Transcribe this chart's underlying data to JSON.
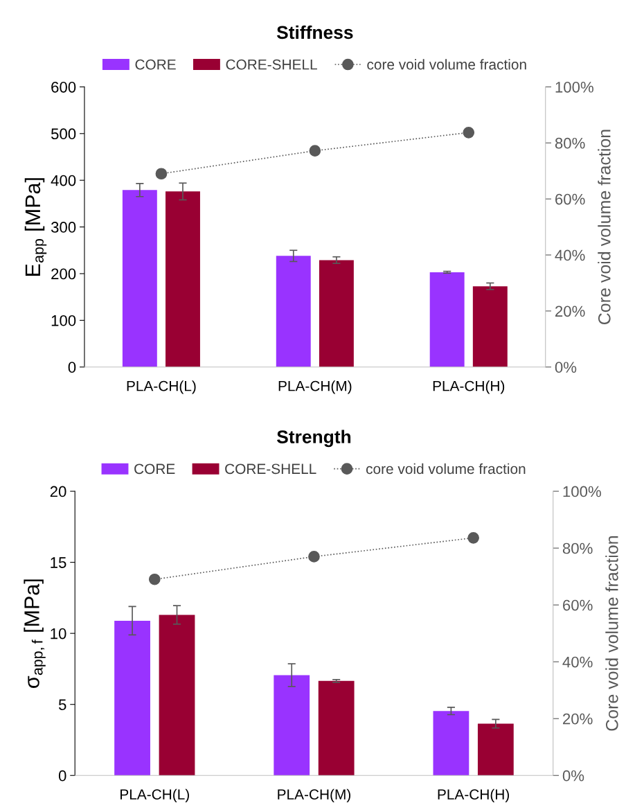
{
  "chart_data": [
    {
      "type": "bar",
      "title": "Stiffness",
      "ylabel": "E$_{app}$ [MPa]",
      "y2label": "Core void volume fraction",
      "categories": [
        "PLA-CH(L)",
        "PLA-CH(M)",
        "PLA-CH(H)"
      ],
      "series": [
        {
          "name": "CORE",
          "color": "#9933ff",
          "values": [
            379,
            238,
            203
          ],
          "errors": [
            14,
            12,
            2
          ]
        },
        {
          "name": "CORE-SHELL",
          "color": "#990033",
          "values": [
            376,
            229,
            173
          ],
          "errors": [
            18,
            7,
            7
          ]
        },
        {
          "name": "core void volume fraction",
          "type": "line",
          "axis": "y2",
          "color": "#595959",
          "marker": "circle",
          "line_style": "dotted",
          "values": [
            69,
            77.2,
            83.7
          ]
        }
      ],
      "ylim": [
        0,
        600
      ],
      "yticks": [
        0,
        100,
        200,
        300,
        400,
        500,
        600
      ],
      "y2lim": [
        0,
        100
      ],
      "y2ticks": [
        {
          "value": 0,
          "label": "0%"
        },
        {
          "value": 20,
          "label": "20%"
        },
        {
          "value": 40,
          "label": "40%"
        },
        {
          "value": 60,
          "label": "60%"
        },
        {
          "value": 80,
          "label": "80%"
        },
        {
          "value": 100,
          "label": "100%"
        }
      ],
      "grid": false,
      "legend": "top"
    },
    {
      "type": "bar",
      "title": "Strength",
      "ylabel": "σ$_{app,f}$ [MPa]",
      "y2label": "Core void volume fraction",
      "categories": [
        "PLA-CH(L)",
        "PLA-CH(M)",
        "PLA-CH(H)"
      ],
      "series": [
        {
          "name": "CORE",
          "color": "#9933ff",
          "values": [
            10.89,
            7.06,
            4.54
          ],
          "errors": [
            1.0,
            0.8,
            0.26
          ]
        },
        {
          "name": "CORE-SHELL",
          "color": "#990033",
          "values": [
            11.3,
            6.65,
            3.64
          ],
          "errors": [
            0.65,
            0.1,
            0.3
          ]
        },
        {
          "name": "core void volume fraction",
          "type": "line",
          "axis": "y2",
          "color": "#595959",
          "marker": "circle",
          "line_style": "dotted",
          "values": [
            69,
            77,
            83.6
          ]
        }
      ],
      "ylim": [
        0,
        20
      ],
      "yticks": [
        0,
        5,
        10,
        15,
        20
      ],
      "y2lim": [
        0,
        100
      ],
      "y2ticks": [
        {
          "value": 0,
          "label": "0%"
        },
        {
          "value": 20,
          "label": "20%"
        },
        {
          "value": 40,
          "label": "40%"
        },
        {
          "value": 60,
          "label": "60%"
        },
        {
          "value": 80,
          "label": "80%"
        },
        {
          "value": 100,
          "label": "100%"
        }
      ],
      "grid": false,
      "legend": "top"
    }
  ]
}
